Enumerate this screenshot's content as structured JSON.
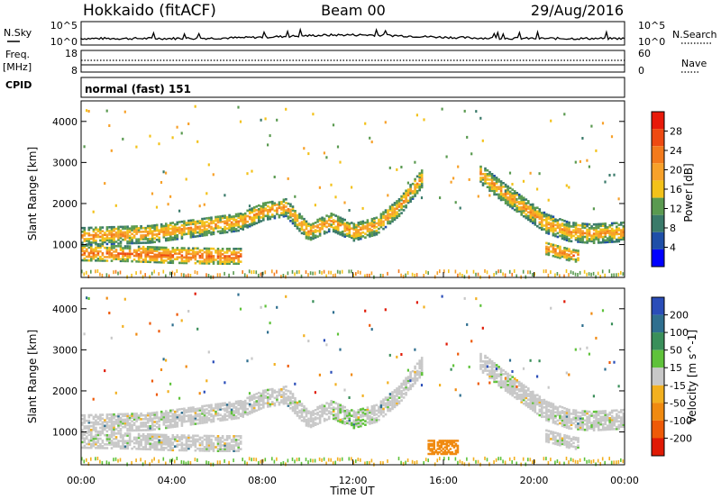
{
  "header": {
    "title_left": "Hokkaido (fitACF)",
    "title_center": "Beam 00",
    "title_right": "29/Aug/2016"
  },
  "labels": {
    "nsky": "N.Sky",
    "freq": "Freq.",
    "mhz": "[MHz]",
    "cpid": "CPID",
    "nsearch": "N.Search",
    "nave": "Nave",
    "cpid_text": "normal (fast) 151"
  },
  "noise_panel": {
    "left_ticks": [
      "10^5",
      "10^0"
    ],
    "right_ticks": [
      "10^5",
      "10^0"
    ]
  },
  "freq_panel": {
    "left_ticks": [
      "18",
      "8"
    ],
    "right_ticks": [
      "60",
      "0"
    ]
  },
  "colors": {
    "power_scale": [
      "#0000ff",
      "#1f4fa8",
      "#3a7a6a",
      "#5a9a50",
      "#f3c21a",
      "#f7a12a",
      "#f37a1c",
      "#ee4a12",
      "#e81a0a"
    ],
    "velocity_scale": [
      "#2a4db8",
      "#2f6f8f",
      "#3a8f5a",
      "#5fc23a",
      "#c8c8c8",
      "#f2b020",
      "#f08a10",
      "#ee5a08",
      "#e01a05"
    ]
  },
  "chart_data": [
    {
      "type": "heatmap",
      "panel": "power",
      "ylabel": "Slant Range [km]",
      "xlabel": "",
      "x_ticks": [
        "00:00",
        "04:00",
        "08:00",
        "12:00",
        "16:00",
        "20:00",
        "00:00"
      ],
      "y_ticks": [
        "1000",
        "2000",
        "3000",
        "4000"
      ],
      "ylim": [
        200,
        4500
      ],
      "xlim_hours": [
        0,
        24
      ],
      "colorbar_label": "Power [dB]",
      "colorbar_ticks": [
        "4",
        "8",
        "12",
        "16",
        "20",
        "24",
        "28"
      ],
      "bands": [
        {
          "name": "near_band",
          "points": [
            [
              0,
              780
            ],
            [
              2,
              760
            ],
            [
              4,
              720
            ],
            [
              6,
              700
            ],
            [
              7,
              700
            ]
          ],
          "width": 180,
          "value": 26
        },
        {
          "name": "upper_band",
          "points": [
            [
              0,
              1200
            ],
            [
              3,
              1250
            ],
            [
              5,
              1400
            ],
            [
              7,
              1550
            ],
            [
              8,
              1800
            ],
            [
              9,
              1900
            ],
            [
              10,
              1300
            ],
            [
              11,
              1550
            ],
            [
              12,
              1300
            ],
            [
              13,
              1450
            ],
            [
              14,
              1900
            ],
            [
              15,
              2600
            ]
          ],
          "width": 220,
          "value": 22
        },
        {
          "name": "evening_band",
          "points": [
            [
              17.5,
              2750
            ],
            [
              18.5,
              2300
            ],
            [
              19.5,
              1900
            ],
            [
              20.5,
              1500
            ],
            [
              21.5,
              1300
            ],
            [
              22.5,
              1250
            ],
            [
              24,
              1300
            ]
          ],
          "width": 230,
          "value": 22
        },
        {
          "name": "evening_lower",
          "points": [
            [
              20.5,
              900
            ],
            [
              21.5,
              750
            ],
            [
              22,
              700
            ]
          ],
          "width": 150,
          "value": 25
        }
      ]
    },
    {
      "type": "heatmap",
      "panel": "velocity",
      "ylabel": "Slant Range [km]",
      "xlabel": "Time UT",
      "x_ticks": [
        "00:00",
        "04:00",
        "08:00",
        "12:00",
        "16:00",
        "20:00",
        "00:00"
      ],
      "y_ticks": [
        "1000",
        "2000",
        "3000",
        "4000"
      ],
      "ylim": [
        200,
        4500
      ],
      "xlim_hours": [
        0,
        24
      ],
      "colorbar_label": "Velocity [m s^-1]",
      "colorbar_ticks": [
        "200",
        "100",
        "50",
        "15",
        "-15",
        "-50",
        "-100",
        "-200"
      ]
    }
  ]
}
